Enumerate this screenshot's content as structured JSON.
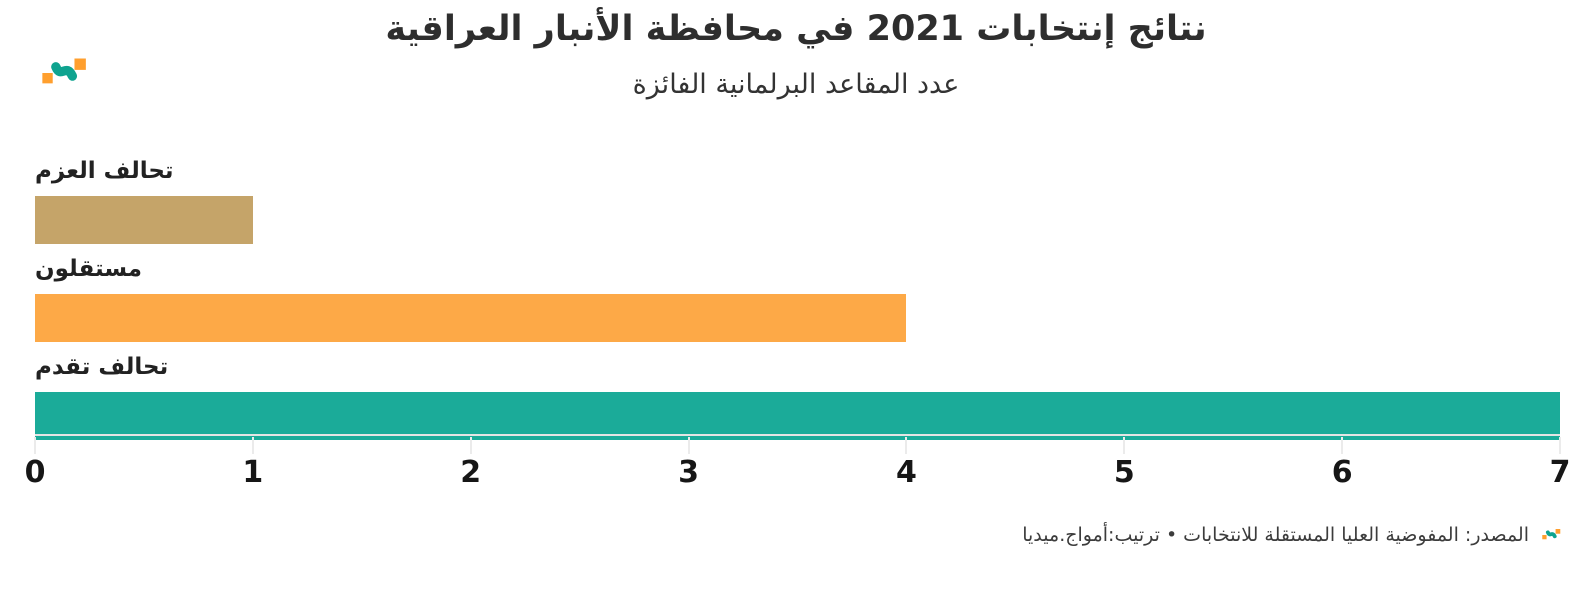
{
  "brand": {
    "logo_name": "amwaj-media-logo",
    "orange": "#FF9F2E",
    "teal": "#0EA38F"
  },
  "chart_data": {
    "type": "bar",
    "orientation": "horizontal",
    "title": "نتائج إنتخابات 2021 في محافظة الأنبار العراقية",
    "subtitle": "عدد المقاعد البرلمانية الفائزة",
    "categories": [
      "تحالف العزم",
      "مستقلون",
      "تحالف تقدم"
    ],
    "values": [
      1,
      4,
      7
    ],
    "bar_colors": [
      "#C5A469",
      "#FDA947",
      "#1BAB99"
    ],
    "xlabel": "",
    "ylabel": "",
    "xlim": [
      0,
      7
    ],
    "xticks": [
      "0",
      "1",
      "2",
      "3",
      "4",
      "5",
      "6",
      "7"
    ],
    "grid": false,
    "legend": "none",
    "text_direction": "rtl",
    "bar_label_position": "above-left"
  },
  "footer": {
    "source_line": "المصدر: المفوضية العليا المستقلة للانتخابات • ترتيب:أمواج.ميديا"
  }
}
